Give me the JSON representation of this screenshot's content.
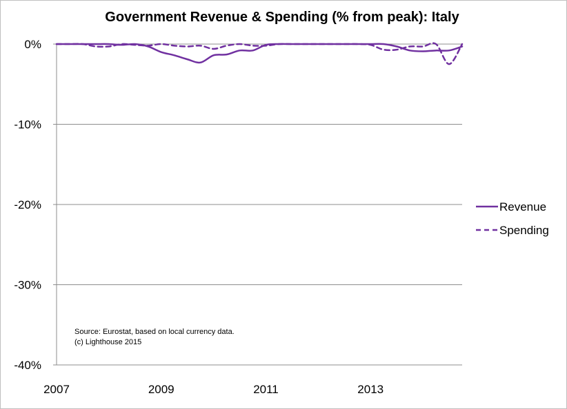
{
  "chart_data": {
    "type": "line",
    "title": "Government Revenue & Spending (% from peak): Italy",
    "xlabel": "",
    "ylabel": "",
    "x": [
      2007.0,
      2007.25,
      2007.5,
      2007.75,
      2008.0,
      2008.25,
      2008.5,
      2008.75,
      2009.0,
      2009.25,
      2009.5,
      2009.75,
      2010.0,
      2010.25,
      2010.5,
      2010.75,
      2011.0,
      2011.25,
      2011.5,
      2011.75,
      2012.0,
      2012.25,
      2012.5,
      2012.75,
      2013.0,
      2013.25,
      2013.5,
      2013.75,
      2014.0,
      2014.25,
      2014.5,
      2014.75
    ],
    "xlim": [
      2007,
      2014.75
    ],
    "xticks": [
      2007,
      2009,
      2011,
      2013
    ],
    "xtick_labels": [
      "2007",
      "2009",
      "2011",
      "2013"
    ],
    "ylim": [
      -40,
      0
    ],
    "yticks": [
      0,
      -10,
      -20,
      -30,
      -40
    ],
    "ytick_labels": [
      "0%",
      "-10%",
      "-20%",
      "-30%",
      "-40%"
    ],
    "grid": true,
    "legend_position": "right",
    "series": [
      {
        "name": "Revenue",
        "color": "#7030a0",
        "dash": "solid",
        "values": [
          0,
          0,
          0,
          0,
          0,
          -0.1,
          0,
          -0.3,
          -1.0,
          -1.4,
          -1.9,
          -2.3,
          -1.4,
          -1.3,
          -0.8,
          -0.8,
          -0.1,
          0,
          0,
          0,
          0,
          0,
          0,
          0,
          0,
          0,
          -0.3,
          -0.8,
          -0.9,
          -0.8,
          -0.8,
          -0.3
        ]
      },
      {
        "name": "Spending",
        "color": "#7030a0",
        "dash": "dashed",
        "values": [
          0,
          0,
          0,
          -0.3,
          -0.3,
          0,
          -0.1,
          -0.2,
          0,
          -0.2,
          -0.3,
          -0.2,
          -0.6,
          -0.2,
          0,
          -0.2,
          -0.2,
          0,
          0,
          0,
          0,
          0,
          0,
          0,
          -0.1,
          -0.7,
          -0.7,
          -0.3,
          -0.3,
          0,
          -2.5,
          0
        ]
      }
    ],
    "annotations": [
      "Source: Eurostat, based on local currency data.",
      "(c) Lighthouse 2015"
    ]
  }
}
